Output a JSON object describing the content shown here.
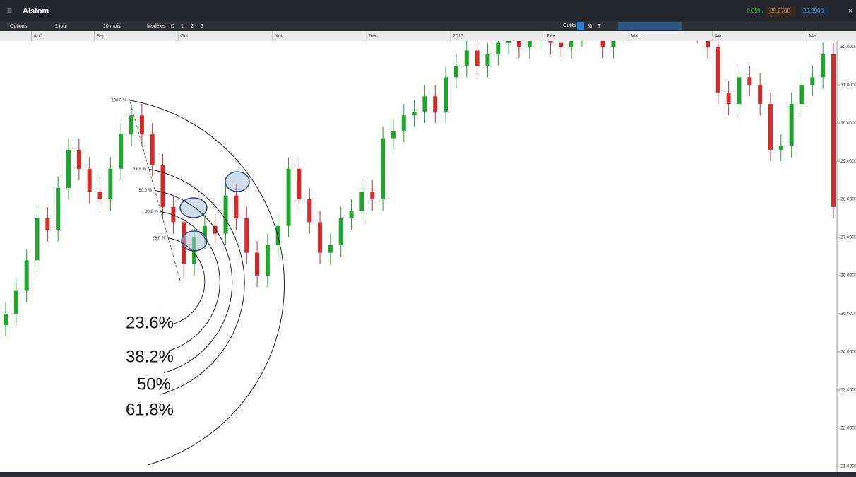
{
  "header": {
    "title": "Alstom",
    "change": "0.09%",
    "bid": "29.2700",
    "ask": "29.2900"
  },
  "toolbar": {
    "options": "Options",
    "interval": "1 jour",
    "range": "10 mois",
    "templates": "Modèles",
    "buttons": [
      "D",
      "1",
      "2",
      "3"
    ],
    "tools": "Outils",
    "percent": "%",
    "text": "T"
  },
  "chart_data": {
    "type": "candlestick",
    "categories": [
      null,
      null,
      null,
      "Aoû",
      null,
      null,
      null,
      null,
      null,
      "Sep",
      null,
      null,
      null,
      null,
      null,
      null,
      null,
      "Oct",
      null,
      null,
      null,
      null,
      null,
      null,
      null,
      null,
      "Nov",
      null,
      null,
      null,
      null,
      null,
      null,
      null,
      null,
      "Déc",
      null,
      null,
      null,
      null,
      null,
      null,
      null,
      "2013",
      null,
      null,
      null,
      null,
      null,
      null,
      null,
      null,
      "Fév",
      null,
      null,
      null,
      null,
      null,
      null,
      null,
      "Mar",
      null,
      null,
      null,
      null,
      null,
      null,
      null,
      "Avr",
      null,
      null,
      null,
      null,
      null,
      null,
      null,
      null,
      "Mai",
      null,
      null
    ],
    "open": [
      24.7,
      25.0,
      25.6,
      26.4,
      27.5,
      27.2,
      28.3,
      29.3,
      28.8,
      28.2,
      28.0,
      28.8,
      29.7,
      30.2,
      29.7,
      28.9,
      27.8,
      27.4,
      26.3,
      27.0,
      27.3,
      27.1,
      28.1,
      27.5,
      26.6,
      26.0,
      26.8,
      27.3,
      28.8,
      28.0,
      27.4,
      26.6,
      26.8,
      27.5,
      27.7,
      28.2,
      28.0,
      29.6,
      29.8,
      30.2,
      30.3,
      30.7,
      30.3,
      31.2,
      31.5,
      31.9,
      31.5,
      31.8,
      32.1,
      32.3,
      32.0,
      32.2,
      32.4,
      32.1,
      32.0,
      32.3,
      32.5,
      32.6,
      32.0,
      32.4,
      32.6,
      32.7,
      32.5,
      32.6,
      32.8,
      32.6,
      32.5,
      32.4,
      32.0,
      30.8,
      30.5,
      31.2,
      31.0,
      30.5,
      29.3,
      29.4,
      30.5,
      31.0,
      31.2,
      31.8
    ],
    "high": [
      25.3,
      25.9,
      26.7,
      27.8,
      27.8,
      28.6,
      29.6,
      29.6,
      29.1,
      28.5,
      29.1,
      30.0,
      30.5,
      30.5,
      30.0,
      29.2,
      28.1,
      27.7,
      27.3,
      27.6,
      27.6,
      28.4,
      28.4,
      27.8,
      26.9,
      27.1,
      27.6,
      29.1,
      29.1,
      28.3,
      27.7,
      27.1,
      27.8,
      28.0,
      28.5,
      28.5,
      29.9,
      30.1,
      30.5,
      30.6,
      31.0,
      31.0,
      31.5,
      31.8,
      32.2,
      32.2,
      32.1,
      32.4,
      32.6,
      32.6,
      32.5,
      32.7,
      32.7,
      32.4,
      32.6,
      32.8,
      32.9,
      32.9,
      32.7,
      32.9,
      33.0,
      33.0,
      32.9,
      33.1,
      33.1,
      32.9,
      32.8,
      32.7,
      32.3,
      31.1,
      31.5,
      31.5,
      31.3,
      30.8,
      29.7,
      30.8,
      31.3,
      31.5,
      32.1,
      32.1
    ],
    "low": [
      24.4,
      24.7,
      25.3,
      26.1,
      26.9,
      26.9,
      28.0,
      28.5,
      27.9,
      27.7,
      27.7,
      28.5,
      29.4,
      29.4,
      28.6,
      27.5,
      27.1,
      25.9,
      26.0,
      26.7,
      26.8,
      26.8,
      27.2,
      26.3,
      25.7,
      25.7,
      26.5,
      27.0,
      27.7,
      27.1,
      26.3,
      26.3,
      26.5,
      27.2,
      27.4,
      27.7,
      27.7,
      29.3,
      29.5,
      29.9,
      30.0,
      30.0,
      30.0,
      30.9,
      31.2,
      31.2,
      31.2,
      31.5,
      31.8,
      31.7,
      31.7,
      31.9,
      31.8,
      31.7,
      31.7,
      32.0,
      32.2,
      31.7,
      31.7,
      32.1,
      32.3,
      32.2,
      32.2,
      32.3,
      32.3,
      32.2,
      32.1,
      31.7,
      30.5,
      30.2,
      30.2,
      30.7,
      30.2,
      29.0,
      29.0,
      29.1,
      30.2,
      30.7,
      30.9,
      27.5
    ],
    "close": [
      25.0,
      25.6,
      26.4,
      27.5,
      27.2,
      28.3,
      29.3,
      28.8,
      28.2,
      28.0,
      28.8,
      29.7,
      30.2,
      29.7,
      28.9,
      27.8,
      27.4,
      26.3,
      27.0,
      27.3,
      27.1,
      28.1,
      27.5,
      26.6,
      26.0,
      26.8,
      27.3,
      28.8,
      28.0,
      27.4,
      26.6,
      26.8,
      27.5,
      27.7,
      28.2,
      28.0,
      29.6,
      29.8,
      30.2,
      30.3,
      30.7,
      30.3,
      31.2,
      31.5,
      31.9,
      31.5,
      31.8,
      32.1,
      32.3,
      32.0,
      32.2,
      32.4,
      32.1,
      32.0,
      32.3,
      32.5,
      32.6,
      32.0,
      32.4,
      32.6,
      32.7,
      32.5,
      32.6,
      32.8,
      32.6,
      32.5,
      32.4,
      32.0,
      30.8,
      30.5,
      31.2,
      31.0,
      30.5,
      29.3,
      29.4,
      30.5,
      31.0,
      31.2,
      31.8,
      27.8
    ],
    "up_color": "#1ea52c",
    "down_color": "#d42a2a",
    "ylim": [
      20.85,
      32.15
    ],
    "yticks": [
      {
        "value": 21,
        "label": "21.0000"
      },
      {
        "value": 22,
        "label": "22.0000"
      },
      {
        "value": 23,
        "label": "23.0000"
      },
      {
        "value": 24,
        "label": "24.0000"
      },
      {
        "value": 25,
        "label": "25.0000"
      },
      {
        "value": 26,
        "label": "26.0000"
      },
      {
        "value": 27,
        "label": "27.0000"
      },
      {
        "value": 28,
        "label": "28.0000"
      },
      {
        "value": 29,
        "label": "29.0000"
      },
      {
        "value": 30,
        "label": "30.0000"
      },
      {
        "value": 31,
        "label": "31.0000"
      },
      {
        "value": 32,
        "label": "32.0000"
      }
    ]
  },
  "fibonacci": {
    "levels": [
      {
        "value": 100,
        "label": "100.0 %"
      },
      {
        "value": 61.8,
        "label": "61.8 %"
      },
      {
        "value": 50,
        "label": "50.0 %"
      },
      {
        "value": 38.2,
        "label": "38.2 %"
      },
      {
        "value": 23.6,
        "label": "23.6 %"
      }
    ],
    "callouts": [
      "23.6%",
      "38.2%",
      "50%",
      "61.8%"
    ]
  }
}
